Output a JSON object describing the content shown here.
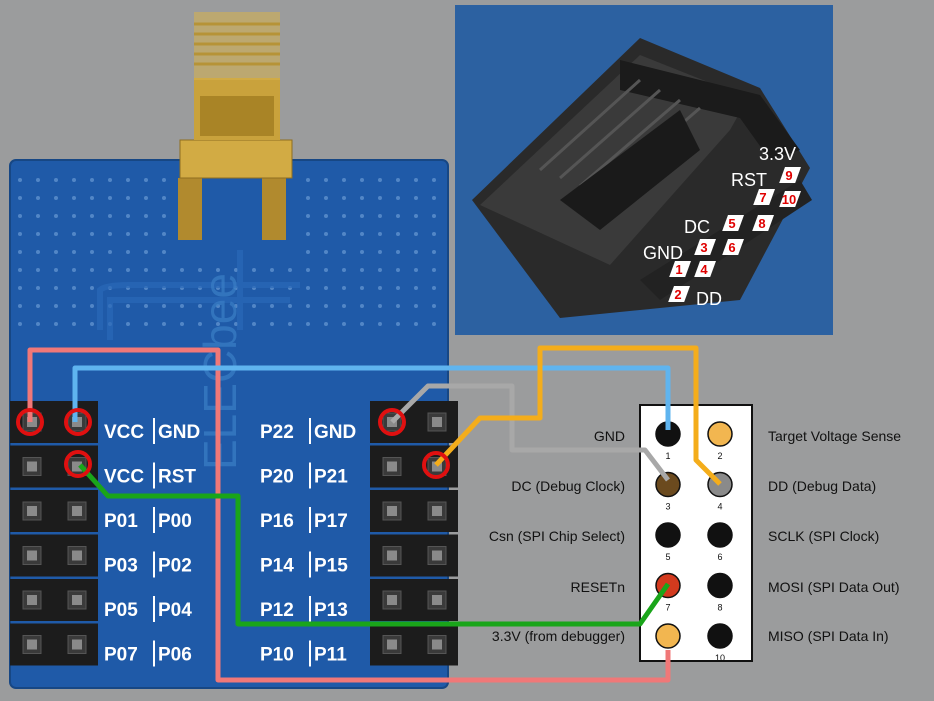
{
  "colors": {
    "board": "#1f5aa8",
    "photo_bg": "#2c61a1",
    "wire_vcc": "#f07878",
    "wire_gnd": "#5fb4ef",
    "wire_rst": "#1aa51a",
    "wire_dc": "#a8a8a8",
    "wire_dd": "#f4ad1b",
    "marker": "#e01010"
  },
  "board": {
    "brand_watermark": "ELECbee",
    "left_header": [
      {
        "a": "VCC",
        "b": "GND"
      },
      {
        "a": "VCC",
        "b": "RST"
      },
      {
        "a": "P01",
        "b": "P00"
      },
      {
        "a": "P03",
        "b": "P02"
      },
      {
        "a": "P05",
        "b": "P04"
      },
      {
        "a": "P07",
        "b": "P06"
      }
    ],
    "right_header": [
      {
        "a": "P22",
        "b": "GND"
      },
      {
        "a": "P20",
        "b": "P21"
      },
      {
        "a": "P16",
        "b": "P17"
      },
      {
        "a": "P14",
        "b": "P15"
      },
      {
        "a": "P12",
        "b": "P13"
      },
      {
        "a": "P10",
        "b": "P11"
      }
    ]
  },
  "idc_photo": {
    "labels": {
      "v33": "3.3V",
      "rst": "RST",
      "dc": "DC",
      "gnd": "GND",
      "dd": "DD"
    },
    "pin_numbers": [
      "1",
      "2",
      "3",
      "4",
      "5",
      "6",
      "7",
      "8",
      "9",
      "10"
    ]
  },
  "debug_connector": {
    "left_labels": [
      "GND",
      "DC (Debug Clock)",
      "Csn (SPI Chip Select)",
      "RESETn",
      "3.3V (from debugger)"
    ],
    "right_labels": [
      "Target Voltage Sense",
      "DD (Debug Data)",
      "SCLK (SPI Clock)",
      "MOSI (SPI Data Out)",
      "MISO (SPI Data In)"
    ],
    "pin_numbers": [
      "1",
      "2",
      "3",
      "4",
      "5",
      "6",
      "7",
      "8",
      "9",
      "10"
    ],
    "pin_colors": [
      "#111111",
      "#f2b650",
      "#6b4a1e",
      "#8a8a8a",
      "#111111",
      "#111111",
      "#d33a1e",
      "#111111",
      "#f2b650",
      "#111111"
    ]
  }
}
